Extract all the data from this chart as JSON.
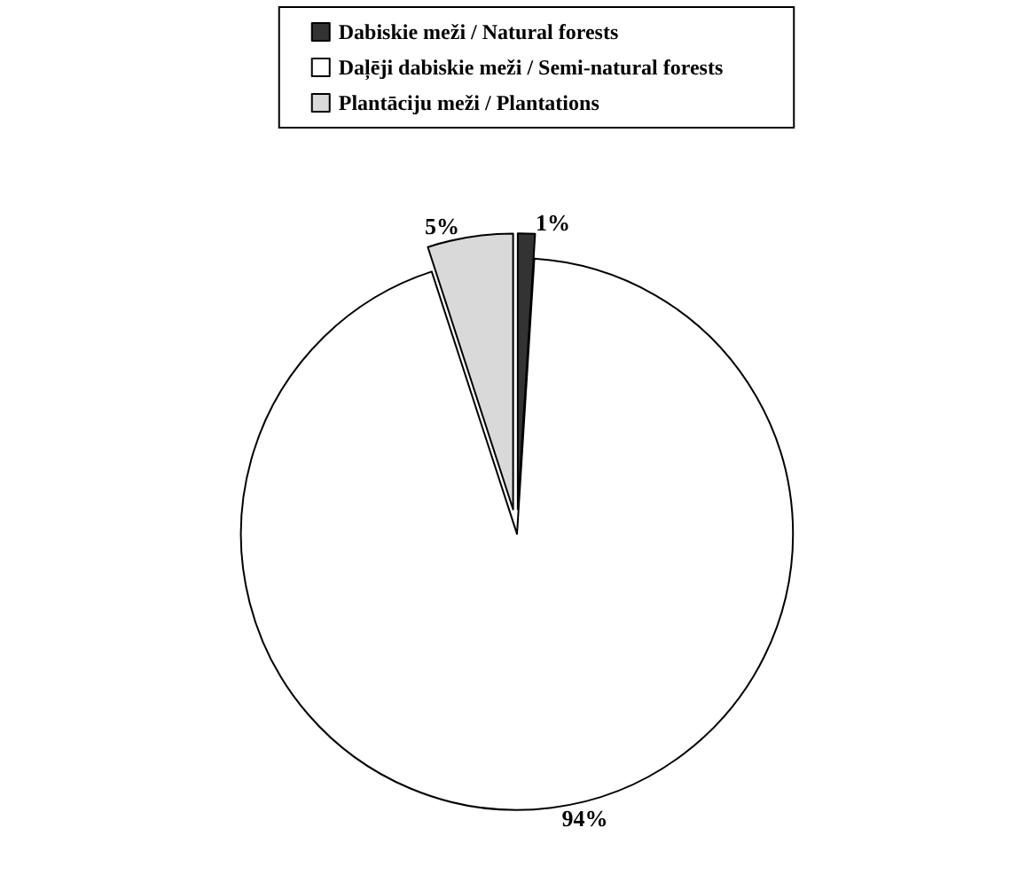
{
  "chart_data": {
    "type": "pie",
    "categories": [
      "Dabiskie meži / Natural forests",
      "Daļēji dabiskie meži / Semi-natural forests",
      "Plantāciju meži / Plantations"
    ],
    "values": [
      1,
      94,
      5
    ],
    "colors": [
      "#333333",
      "#ffffff",
      "#d9d9d9"
    ],
    "value_labels": [
      "1%",
      "94%",
      "5%"
    ],
    "legend": "top"
  }
}
